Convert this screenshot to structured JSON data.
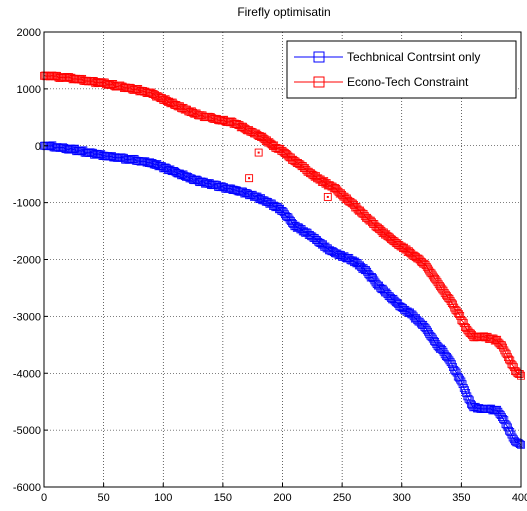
{
  "chart_data": {
    "type": "scatter",
    "title": "Firefly optimisatin",
    "xlabel": "",
    "ylabel": "",
    "xlim": [
      0,
      400
    ],
    "ylim": [
      -6000,
      2000
    ],
    "x_ticks": [
      0,
      50,
      100,
      150,
      200,
      250,
      300,
      350,
      400
    ],
    "y_ticks": [
      2000,
      1000,
      0,
      -1000,
      -2000,
      -3000,
      -4000,
      -5000,
      -6000
    ],
    "grid": true,
    "legend_position": "top-right",
    "marker": "square",
    "series": [
      {
        "name": "Techbnical Contrsint only",
        "color": "#0000ff",
        "keypoints": [
          [
            0,
            0
          ],
          [
            10,
            -20
          ],
          [
            25,
            -70
          ],
          [
            50,
            -170
          ],
          [
            75,
            -250
          ],
          [
            90,
            -300
          ],
          [
            100,
            -380
          ],
          [
            115,
            -500
          ],
          [
            125,
            -590
          ],
          [
            130,
            -620
          ],
          [
            140,
            -680
          ],
          [
            150,
            -730
          ],
          [
            160,
            -780
          ],
          [
            170,
            -840
          ],
          [
            180,
            -920
          ],
          [
            190,
            -1020
          ],
          [
            195,
            -1080
          ],
          [
            200,
            -1150
          ],
          [
            205,
            -1270
          ],
          [
            210,
            -1400
          ],
          [
            220,
            -1530
          ],
          [
            230,
            -1680
          ],
          [
            240,
            -1840
          ],
          [
            250,
            -1940
          ],
          [
            260,
            -2030
          ],
          [
            270,
            -2200
          ],
          [
            280,
            -2450
          ],
          [
            290,
            -2650
          ],
          [
            300,
            -2850
          ],
          [
            310,
            -3000
          ],
          [
            320,
            -3200
          ],
          [
            330,
            -3500
          ],
          [
            340,
            -3780
          ],
          [
            350,
            -4150
          ],
          [
            355,
            -4400
          ],
          [
            360,
            -4600
          ],
          [
            370,
            -4620
          ],
          [
            380,
            -4650
          ],
          [
            385,
            -4800
          ],
          [
            390,
            -5000
          ],
          [
            395,
            -5200
          ],
          [
            400,
            -5250
          ]
        ],
        "outliers": []
      },
      {
        "name": "Econo-Tech Constraint",
        "color": "#ff0000",
        "keypoints": [
          [
            0,
            1230
          ],
          [
            10,
            1220
          ],
          [
            25,
            1180
          ],
          [
            50,
            1100
          ],
          [
            75,
            1000
          ],
          [
            90,
            920
          ],
          [
            100,
            820
          ],
          [
            110,
            720
          ],
          [
            120,
            620
          ],
          [
            130,
            540
          ],
          [
            140,
            500
          ],
          [
            150,
            440
          ],
          [
            160,
            400
          ],
          [
            165,
            340
          ],
          [
            170,
            280
          ],
          [
            180,
            180
          ],
          [
            185,
            120
          ],
          [
            190,
            30
          ],
          [
            200,
            -100
          ],
          [
            210,
            -260
          ],
          [
            220,
            -420
          ],
          [
            230,
            -580
          ],
          [
            240,
            -700
          ],
          [
            245,
            -760
          ],
          [
            250,
            -870
          ],
          [
            255,
            -960
          ],
          [
            260,
            -1050
          ],
          [
            270,
            -1250
          ],
          [
            280,
            -1450
          ],
          [
            290,
            -1620
          ],
          [
            300,
            -1780
          ],
          [
            310,
            -1920
          ],
          [
            320,
            -2100
          ],
          [
            330,
            -2400
          ],
          [
            340,
            -2700
          ],
          [
            350,
            -3050
          ],
          [
            355,
            -3250
          ],
          [
            360,
            -3350
          ],
          [
            370,
            -3360
          ],
          [
            380,
            -3420
          ],
          [
            385,
            -3550
          ],
          [
            390,
            -3750
          ],
          [
            395,
            -3950
          ],
          [
            400,
            -4050
          ]
        ],
        "outliers": [
          [
            172,
            -570
          ],
          [
            180,
            -120
          ],
          [
            238,
            -900
          ]
        ]
      }
    ]
  }
}
